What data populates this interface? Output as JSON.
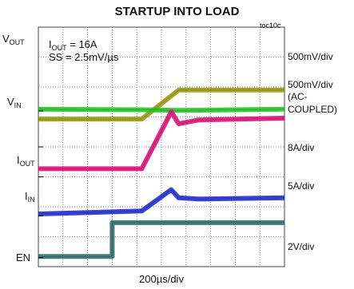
{
  "chart_data": {
    "type": "line",
    "title": "STARTUP INTO LOAD",
    "figure_id": "toc10c",
    "xlabel": "200µs/div",
    "x_divisions": 10,
    "y_divisions": 8,
    "grid": true,
    "conditions": {
      "iout": "= 16A",
      "ss": "SS = 2.5mV/µs"
    },
    "series": [
      {
        "name": "VOUT",
        "name_main": "V",
        "name_sub": "OUT",
        "color": "#9a9a10",
        "x": [
          0,
          4.2,
          5.7,
          10
        ],
        "y": [
          0.93,
          0.93,
          1.9,
          1.9
        ]
      },
      {
        "name": "VIN",
        "name_main": "V",
        "name_sub": "IN",
        "color": "#22c822",
        "x": [
          0,
          4.2,
          5.7,
          10
        ],
        "y": [
          0.06,
          0.04,
          0.02,
          0.06
        ]
      },
      {
        "name": "IOUT",
        "name_main": "I",
        "name_sub": "OUT",
        "color": "#e0107a",
        "x": [
          0,
          4.2,
          5.4,
          5.7,
          6.5,
          10
        ],
        "y": [
          0.27,
          0.27,
          2.17,
          1.77,
          1.9,
          1.96
        ]
      },
      {
        "name": "IN",
        "name_main": "I",
        "name_sub": "IN",
        "color": "#1f2fcf",
        "x": [
          0,
          4.2,
          5.4,
          5.7,
          6.5,
          10
        ],
        "y": [
          0.06,
          0.16,
          0.87,
          0.6,
          0.56,
          0.6
        ]
      },
      {
        "name": "EN",
        "name_main": "EN",
        "name_sub": "",
        "color": "#2f6e6a",
        "x": [
          0,
          3.0,
          3.0,
          10
        ],
        "y": [
          0.04,
          0.04,
          1.17,
          1.17
        ]
      }
    ],
    "scales": [
      {
        "label": "500mV/div"
      },
      {
        "label": "500mV/div"
      },
      {
        "label": "(AC-"
      },
      {
        "label": "COUPLED)"
      },
      {
        "label": "8A/div"
      },
      {
        "label": "5A/div"
      },
      {
        "label": "2V/div"
      }
    ]
  }
}
